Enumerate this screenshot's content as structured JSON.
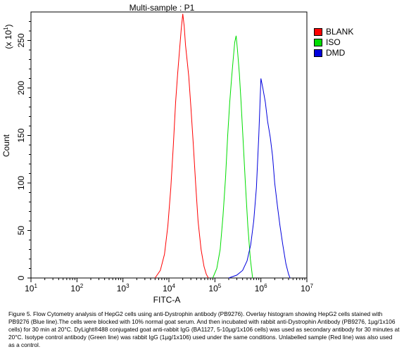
{
  "chart_data": {
    "type": "line",
    "title": "Multi-sample : P1",
    "xlabel": "FITC-A",
    "ylabel": "Count",
    "y_multiplier_label": "(x 10",
    "y_multiplier_exp": "1",
    "x_scale": "log",
    "xlim": [
      10,
      10000000
    ],
    "ylim": [
      0,
      280
    ],
    "x_ticks": [
      {
        "base": "10",
        "exp": "1",
        "value": 10
      },
      {
        "base": "10",
        "exp": "2",
        "value": 100
      },
      {
        "base": "10",
        "exp": "3",
        "value": 1000
      },
      {
        "base": "10",
        "exp": "4",
        "value": 10000
      },
      {
        "base": "10",
        "exp": "5",
        "value": 100000
      },
      {
        "base": "10",
        "exp": "6",
        "value": 1000000
      },
      {
        "base": "10",
        "exp": "7",
        "value": 10000000
      }
    ],
    "y_ticks": [
      0,
      50,
      100,
      150,
      200,
      250
    ],
    "grid": false,
    "legend_position": "top-right",
    "series": [
      {
        "name": "BLANK",
        "color": "#ff0000",
        "x": [
          5000,
          6500,
          8000,
          9500,
          11000,
          12500,
          14000,
          15500,
          17000,
          18500,
          20000,
          21500,
          23000,
          25000,
          27000,
          30000,
          34000,
          38000,
          43000,
          50000,
          58000,
          65000,
          72000
        ],
        "y": [
          0,
          8,
          25,
          55,
          95,
          140,
          185,
          215,
          240,
          262,
          278,
          265,
          245,
          228,
          212,
          180,
          140,
          100,
          60,
          30,
          12,
          4,
          0
        ]
      },
      {
        "name": "ISO",
        "color": "#00dd00",
        "x": [
          90000,
          110000,
          130000,
          150000,
          170000,
          190000,
          210000,
          230000,
          250000,
          270000,
          290000,
          310000,
          340000,
          370000,
          410000,
          460000,
          520000,
          590000,
          660000
        ],
        "y": [
          0,
          10,
          30,
          65,
          105,
          150,
          185,
          210,
          230,
          248,
          255,
          240,
          215,
          185,
          145,
          100,
          55,
          20,
          0
        ]
      },
      {
        "name": "DMD",
        "color": "#0000dd",
        "x": [
          200000,
          300000,
          400000,
          500000,
          600000,
          700000,
          800000,
          900000,
          1000000,
          1100000,
          1250000,
          1400000,
          1600000,
          1800000,
          2000000,
          2300000,
          2600000,
          3000000,
          3500000,
          4000000,
          4300000
        ],
        "y": [
          0,
          3,
          8,
          18,
          35,
          60,
          95,
          150,
          210,
          200,
          185,
          165,
          148,
          128,
          100,
          75,
          55,
          35,
          15,
          4,
          0
        ]
      }
    ]
  },
  "legend": [
    {
      "label": "BLANK",
      "color": "#ff0000"
    },
    {
      "label": "ISO",
      "color": "#00dd00"
    },
    {
      "label": "DMD",
      "color": "#0000dd"
    }
  ],
  "caption": "Figure 5. Flow Cytometry analysis of HepG2 cells using anti-Dystrophin antibody (PB9276).  Overlay histogram showing HepG2 cells stained with PB9276 (Blue line).The cells were blocked with 10% normal goat serum.  And then incubated with rabbit anti-Dystrophin Antibody (PB9276, 1µg/1x106 cells) for 30 min at 20°C. DyLight®488 conjugated goat anti-rabbit IgG (BA1127, 5-10µg/1x106 cells) was used as secondary antibody for 30 minutes at 20°C. Isotype control antibody (Green line) was rabbit IgG (1µg/1x106) used under the same conditions. Unlabelled sample (Red line) was also used as a control."
}
